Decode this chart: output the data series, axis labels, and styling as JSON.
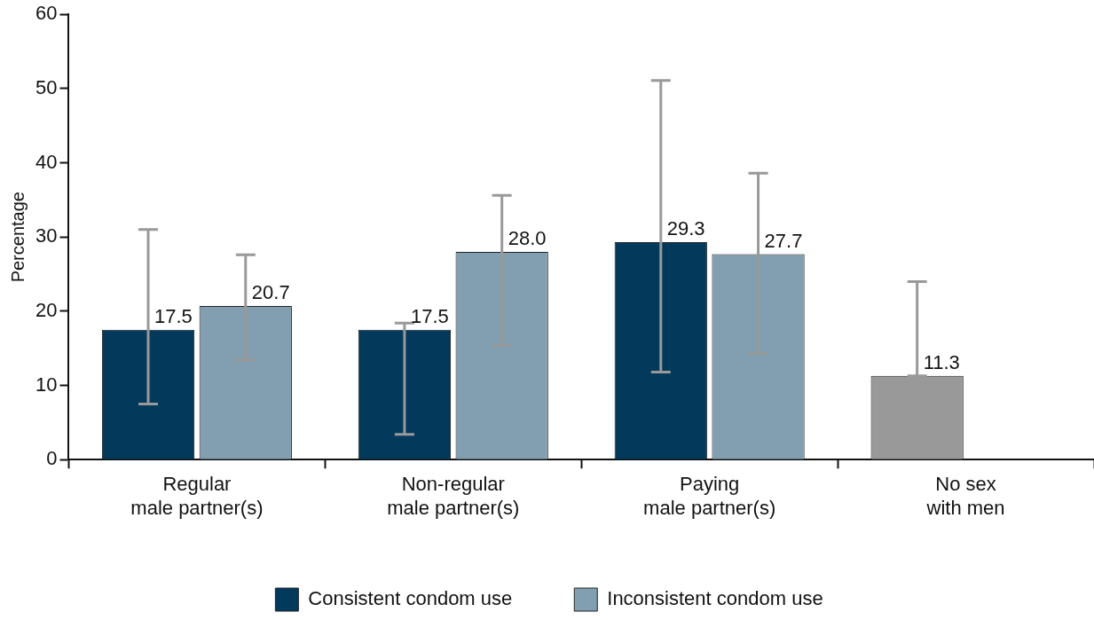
{
  "chart_data": {
    "type": "bar",
    "ylabel": "Percentage",
    "categories": [
      "Regular\nmale partner(s)",
      "Non-regular\nmale partner(s)",
      "Paying\nmale partner(s)",
      "No sex\nwith men"
    ],
    "series": [
      {
        "name": "Consistent condom use",
        "color": "#033a5c",
        "colors": [
          "#033a5c",
          "#033a5c",
          "#033a5c",
          "#999999"
        ],
        "values": [
          17.5,
          17.5,
          29.3,
          11.3
        ],
        "value_labels": [
          "17.5",
          "17.5",
          "29.3",
          "11.3"
        ],
        "errors": [
          [
            7.5,
            31.0
          ],
          [
            3.4,
            18.4
          ],
          [
            11.8,
            51.1
          ],
          [
            11.3,
            24.0
          ]
        ]
      },
      {
        "name": "Inconsistent condom use",
        "color": "#819fb0",
        "values": [
          20.7,
          28.0,
          27.7,
          null
        ],
        "value_labels": [
          "20.7",
          "28.0",
          "27.7",
          null
        ],
        "errors": [
          [
            13.4,
            27.6
          ],
          [
            15.4,
            35.6
          ],
          [
            14.3,
            38.6
          ],
          null
        ]
      }
    ],
    "ylim": [
      0,
      60
    ],
    "yticks": [
      0,
      10,
      20,
      30,
      40,
      50,
      60
    ],
    "grid": false,
    "legend": "bottom"
  }
}
